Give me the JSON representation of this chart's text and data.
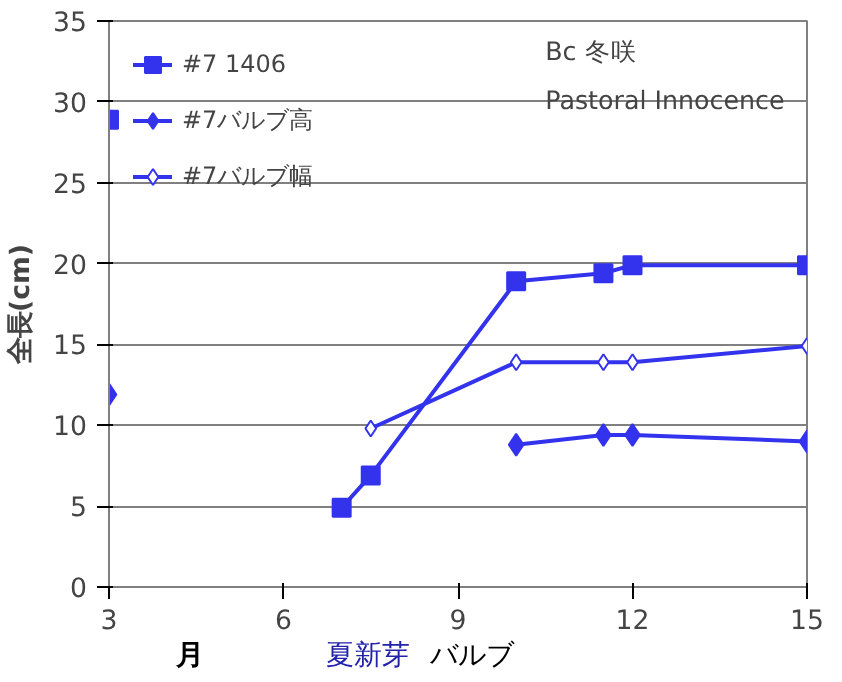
{
  "chart_data": {
    "type": "line",
    "ylabel": "全長(cm)",
    "xlabel": "月",
    "xlim": [
      3,
      15
    ],
    "xticks": [
      3,
      6,
      9,
      12,
      15
    ],
    "ylim": [
      0,
      35
    ],
    "yticks": [
      0,
      5,
      10,
      15,
      20,
      25,
      30,
      35
    ],
    "grid": "y",
    "legend": "top left",
    "annotations": [
      "Bc  冬咲",
      "Pastoral Innocence",
      "夏新芽",
      "バルブ"
    ],
    "series": [
      {
        "name": "#7 1406",
        "color": "#3333ee",
        "marker": "square",
        "x": [
          3,
          6,
          7,
          7.5,
          10,
          11.5,
          12,
          15
        ],
        "values": [
          28.9,
          null,
          4.9,
          6.9,
          18.9,
          19.4,
          19.9,
          19.9
        ]
      },
      {
        "name": "#7バルブ高",
        "color": "#3333ee",
        "marker": "diamond",
        "x": [
          3,
          6,
          10,
          11.5,
          12,
          15
        ],
        "values": [
          11.9,
          null,
          8.8,
          9.4,
          9.4,
          9.0
        ]
      },
      {
        "name": "#7バルブ幅",
        "color": "#3333ee",
        "marker": "diamond",
        "x": [
          7.5,
          10,
          11.5,
          12,
          15
        ],
        "values": [
          9.8,
          13.9,
          13.9,
          13.9,
          14.9
        ]
      }
    ]
  }
}
